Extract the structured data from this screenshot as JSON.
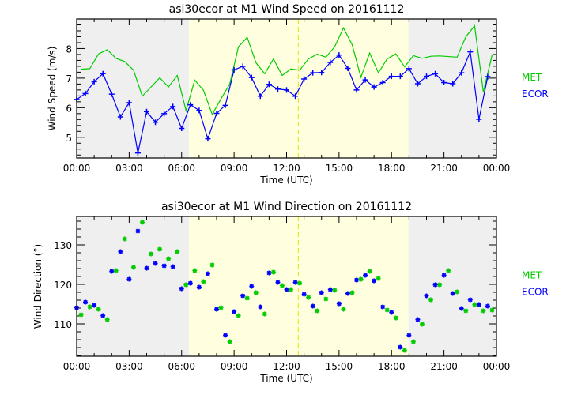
{
  "colors": {
    "met": "#00cc00",
    "ecor": "#0000ff",
    "night": "#efefef",
    "day": "#ffffe0",
    "noon": "#e6e600"
  },
  "chart_data": [
    {
      "type": "line",
      "title": "asi30ecor at M1 Wind Speed on 20161112",
      "xlabel": "Time (UTC)",
      "ylabel": "Wind Speed (m/s)",
      "xlim": [
        0,
        24
      ],
      "ylim": [
        4.3,
        9.0
      ],
      "xticks": [
        0,
        3,
        6,
        9,
        12,
        15,
        18,
        21,
        24
      ],
      "xtick_labels": [
        "00:00",
        "03:00",
        "06:00",
        "09:00",
        "12:00",
        "15:00",
        "18:00",
        "21:00",
        "00:00"
      ],
      "yticks": [
        5,
        6,
        7,
        8
      ],
      "ytick_labels": [
        "5",
        "6",
        "7",
        "8"
      ],
      "shading": {
        "night_before_end": 6.42,
        "day_end": 18.97,
        "solar_noon": 12.67
      },
      "legend": {
        "placement": "right",
        "entries": [
          "MET",
          "ECOR"
        ]
      },
      "series": [
        {
          "name": "MET",
          "marker": "none",
          "x": [
            0.25,
            0.75,
            1.25,
            1.75,
            2.25,
            2.75,
            3.25,
            3.75,
            4.25,
            4.75,
            5.25,
            5.75,
            6.25,
            6.75,
            7.25,
            7.75,
            8.25,
            8.75,
            9.25,
            9.75,
            10.25,
            10.75,
            11.25,
            11.75,
            12.25,
            12.75,
            13.25,
            13.75,
            14.25,
            14.75,
            15.25,
            15.75,
            16.25,
            16.75,
            17.25,
            17.75,
            18.25,
            18.75,
            19.25,
            19.75,
            20.25,
            20.75,
            21.25,
            21.75,
            22.25,
            22.75,
            23.25,
            23.75
          ],
          "values": [
            7.3,
            7.32,
            7.82,
            7.96,
            7.67,
            7.56,
            7.27,
            6.39,
            6.7,
            7.01,
            6.7,
            7.09,
            5.9,
            6.93,
            6.59,
            5.77,
            6.3,
            6.8,
            8.06,
            8.38,
            7.52,
            7.15,
            7.65,
            7.09,
            7.31,
            7.27,
            7.65,
            7.81,
            7.71,
            8.06,
            8.7,
            8.13,
            7.03,
            7.85,
            7.18,
            7.65,
            7.82,
            7.38,
            7.76,
            7.67,
            7.74,
            7.75,
            7.73,
            7.71,
            8.4,
            8.77,
            6.53,
            7.78
          ]
        },
        {
          "name": "ECOR",
          "marker": "plus",
          "x": [
            0,
            0.5,
            1,
            1.5,
            2,
            2.5,
            3,
            3.5,
            4,
            4.5,
            5,
            5.5,
            6,
            6.5,
            7,
            7.5,
            8,
            8.5,
            9,
            9.5,
            10,
            10.5,
            11,
            11.5,
            12,
            12.5,
            13,
            13.5,
            14,
            14.5,
            15,
            15.5,
            16,
            16.5,
            17,
            17.5,
            18,
            18.5,
            19,
            19.5,
            20,
            20.5,
            21,
            21.5,
            22,
            22.5,
            23,
            23.5
          ],
          "values": [
            6.28,
            6.48,
            6.88,
            7.15,
            6.46,
            5.69,
            6.17,
            4.47,
            5.87,
            5.51,
            5.8,
            6.04,
            5.3,
            6.1,
            5.91,
            4.95,
            5.81,
            6.08,
            7.28,
            7.4,
            7.02,
            6.39,
            6.79,
            6.63,
            6.6,
            6.39,
            6.97,
            7.18,
            7.19,
            7.53,
            7.78,
            7.33,
            6.6,
            6.94,
            6.7,
            6.85,
            7.06,
            7.06,
            7.32,
            6.81,
            7.06,
            7.15,
            6.85,
            6.81,
            7.18,
            7.89,
            5.61,
            7.05
          ]
        }
      ]
    },
    {
      "type": "scatter",
      "title": "asi30ecor at M1 Wind Direction on 20161112",
      "xlabel": "Time (UTC)",
      "ylabel": "Wind Direction (°)",
      "xlim": [
        0,
        24
      ],
      "ylim": [
        101.8,
        137.2
      ],
      "xticks": [
        0,
        3,
        6,
        9,
        12,
        15,
        18,
        21,
        24
      ],
      "xtick_labels": [
        "00:00",
        "03:00",
        "06:00",
        "09:00",
        "12:00",
        "15:00",
        "18:00",
        "21:00",
        "00:00"
      ],
      "yticks": [
        110,
        120,
        130
      ],
      "ytick_labels": [
        "110",
        "120",
        "130"
      ],
      "shading": {
        "night_before_end": 6.42,
        "day_end": 18.97,
        "solar_noon": 12.67
      },
      "legend": {
        "placement": "right",
        "entries": [
          "MET",
          "ECOR"
        ]
      },
      "series": [
        {
          "name": "MET",
          "marker": "asterisk",
          "x": [
            0.25,
            0.75,
            1.25,
            1.75,
            2.25,
            2.75,
            3.25,
            3.75,
            4.25,
            4.75,
            5.25,
            5.75,
            6.25,
            6.75,
            7.25,
            7.75,
            8.25,
            8.75,
            9.25,
            9.75,
            10.25,
            10.75,
            11.25,
            11.75,
            12.25,
            12.75,
            13.25,
            13.75,
            14.25,
            14.75,
            15.25,
            15.75,
            16.25,
            16.75,
            17.25,
            17.75,
            18.25,
            18.75,
            19.25,
            19.75,
            20.25,
            20.75,
            21.25,
            21.75,
            22.25,
            22.75,
            23.25,
            23.75
          ],
          "values": [
            112.3,
            114.3,
            113.7,
            111.1,
            123.5,
            131.5,
            124.3,
            135.7,
            127.7,
            128.9,
            126.5,
            128.3,
            119.9,
            123.5,
            120.7,
            124.9,
            114.1,
            105.5,
            112.1,
            116.5,
            117.9,
            112.5,
            123.1,
            119.7,
            118.7,
            120.3,
            116.7,
            113.3,
            116.3,
            118.5,
            113.7,
            117.9,
            121.3,
            123.3,
            121.5,
            113.5,
            111.5,
            103.3,
            105.5,
            109.9,
            116.1,
            119.9,
            123.5,
            118.1,
            113.3,
            114.9,
            113.3,
            113.5
          ]
        },
        {
          "name": "ECOR",
          "marker": "asterisk",
          "x": [
            0,
            0.5,
            1,
            1.5,
            2,
            2.5,
            3,
            3.5,
            4,
            4.5,
            5,
            5.5,
            6,
            6.5,
            7,
            7.5,
            8,
            8.5,
            9,
            9.5,
            10,
            10.5,
            11,
            11.5,
            12,
            12.5,
            13,
            13.5,
            14,
            14.5,
            15,
            15.5,
            16,
            16.5,
            17,
            17.5,
            18,
            18.5,
            19,
            19.5,
            20,
            20.5,
            21,
            21.5,
            22,
            22.5,
            23,
            23.5
          ],
          "values": [
            114.1,
            115.5,
            114.7,
            112.1,
            123.3,
            128.3,
            121.3,
            133.5,
            124.1,
            125.3,
            124.7,
            124.5,
            118.9,
            120.3,
            119.3,
            122.7,
            113.7,
            107.1,
            113.1,
            117.1,
            119.5,
            114.3,
            122.9,
            120.5,
            118.7,
            120.5,
            117.5,
            114.5,
            117.9,
            118.7,
            115.1,
            117.7,
            121.1,
            122.3,
            120.9,
            114.3,
            112.9,
            104.1,
            107.1,
            111.1,
            117.1,
            119.9,
            122.3,
            117.7,
            113.9,
            116.1,
            114.9,
            114.5
          ]
        }
      ]
    }
  ]
}
